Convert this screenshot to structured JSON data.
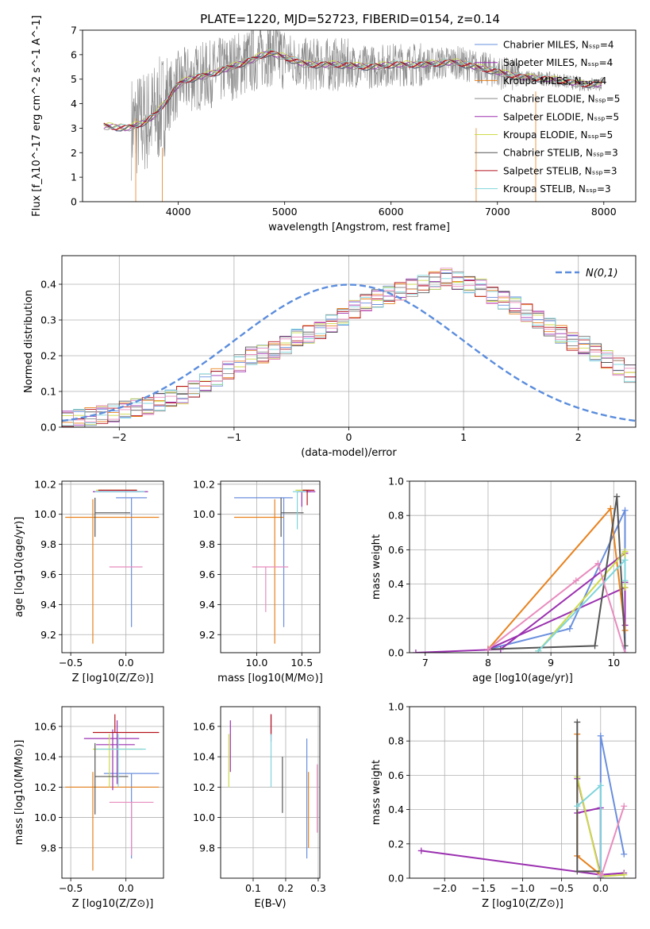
{
  "title": "PLATE=1220, MJD=52723, FIBERID=0154, z=0.14",
  "colors": {
    "series": [
      "#6a8fde",
      "#9b30b0",
      "#e8821e",
      "#8b8b8b",
      "#9b30b0",
      "#cddb4a",
      "#555555",
      "#b4141e",
      "#7fd4dc",
      "#e88cbe"
    ]
  },
  "chart_data": [
    {
      "type": "line",
      "title": "PLATE=1220, MJD=52723, FIBERID=0154, z=0.14",
      "xlabel": "wavelength [Angstrom, rest frame]",
      "ylabel": "Flux [f_λ10^-17 erg cm^-2 s^-1 A^-1]",
      "xlim": [
        3100,
        8300
      ],
      "ylim": [
        0,
        7
      ],
      "xticks": [
        4000,
        5000,
        6000,
        7000,
        8000
      ],
      "yticks": [
        0,
        1,
        2,
        3,
        4,
        5,
        6,
        7
      ],
      "legend_position": "top-right",
      "legend": [
        "Chabrier MILES, N_SSP=4",
        "Salpeter MILES, N_SSP=4",
        "Kroupa MILES, N_SSP=4",
        "Chabrier ELODIE, N_SSP=5",
        "Salpeter ELODIE, N_SSP=5",
        "Kroupa ELODIE, N_SSP=5",
        "Chabrier STELIB, N_SSP=3",
        "Salpeter STELIB, N_SSP=3",
        "Kroupa STELIB, N_SSP=3"
      ],
      "continuum": {
        "x": [
          3300,
          3500,
          3600,
          3700,
          3800,
          3900,
          4000,
          4100,
          4300,
          4500,
          4700,
          4850,
          5000,
          5200,
          5500,
          5800,
          6000,
          6300,
          6600,
          6800,
          7000,
          7200,
          7500,
          7800,
          8000
        ],
        "y": [
          3.1,
          3.0,
          3.1,
          3.3,
          3.6,
          4.2,
          4.8,
          5.0,
          5.2,
          5.5,
          5.8,
          6.1,
          5.9,
          5.6,
          5.6,
          5.5,
          5.6,
          5.6,
          5.7,
          5.5,
          5.3,
          5.1,
          5.0,
          4.8,
          4.8
        ]
      }
    },
    {
      "type": "histogram",
      "xlabel": "(data-model)/error",
      "ylabel": "Normed distribution",
      "xlim": [
        -2.5,
        2.5
      ],
      "ylim": [
        0,
        0.48
      ],
      "xticks": [
        -2,
        -1,
        0,
        1,
        2
      ],
      "yticks": [
        0.0,
        0.1,
        0.2,
        0.3,
        0.4
      ],
      "grid": true,
      "legend": [
        "N(0,1)"
      ],
      "legend_position": "top-right",
      "bin_width": 0.1,
      "bin_start": -2.5,
      "values": [
        0.02,
        0.025,
        0.03,
        0.035,
        0.04,
        0.05,
        0.055,
        0.06,
        0.07,
        0.08,
        0.09,
        0.105,
        0.125,
        0.14,
        0.16,
        0.18,
        0.2,
        0.205,
        0.215,
        0.23,
        0.25,
        0.26,
        0.27,
        0.29,
        0.31,
        0.33,
        0.35,
        0.36,
        0.37,
        0.38,
        0.39,
        0.4,
        0.41,
        0.42,
        0.41,
        0.4,
        0.39,
        0.37,
        0.355,
        0.34,
        0.32,
        0.3,
        0.28,
        0.26,
        0.24,
        0.23,
        0.21,
        0.19,
        0.17,
        0.15
      ]
    },
    {
      "type": "errorbar",
      "xlabel": "Z [log10(Z/Z⊙)]",
      "ylabel": "age [log10(age/yr)]",
      "xlim": [
        -0.58,
        0.34
      ],
      "ylim": [
        9.08,
        10.22
      ],
      "xticks": [
        -0.5,
        0.0
      ],
      "yticks": [
        9.2,
        9.4,
        9.6,
        9.8,
        10.0,
        10.2
      ],
      "grid": true,
      "points": [
        {
          "x": 0.05,
          "y": 10.11,
          "xerr": [
            0.14,
            0.14
          ],
          "yerr": [
            0.86,
            0.0
          ],
          "c": 0
        },
        {
          "x": -0.05,
          "y": 10.15,
          "xerr": [
            0.2,
            0.25
          ],
          "yerr": [
            0.0,
            0.0
          ],
          "c": 1
        },
        {
          "x": -0.3,
          "y": 9.98,
          "xerr": [
            0.25,
            0.6
          ],
          "yerr": [
            0.84,
            0.12
          ],
          "c": 2
        },
        {
          "x": -0.12,
          "y": 10.15,
          "xerr": [
            0.18,
            0.25
          ],
          "yerr": [
            0.0,
            0.0
          ],
          "c": 4
        },
        {
          "x": -0.15,
          "y": 10.16,
          "xerr": [
            0.12,
            0.25
          ],
          "yerr": [
            0.0,
            0.0
          ],
          "c": 5
        },
        {
          "x": -0.28,
          "y": 10.01,
          "xerr": [
            0.0,
            0.32
          ],
          "yerr": [
            0.16,
            0.1
          ],
          "c": 6
        },
        {
          "x": -0.1,
          "y": 10.16,
          "xerr": [
            0.15,
            0.2
          ],
          "yerr": [
            0.0,
            0.0
          ],
          "c": 7
        },
        {
          "x": -0.08,
          "y": 10.15,
          "xerr": [
            0.2,
            0.25
          ],
          "yerr": [
            0.0,
            0.0
          ],
          "c": 8
        },
        {
          "x": 0.05,
          "y": 9.65,
          "xerr": [
            0.2,
            0.1
          ],
          "yerr": [
            0.0,
            0.0
          ],
          "c": 9
        }
      ]
    },
    {
      "type": "errorbar",
      "xlabel": "mass [log10(M/M⊙)]",
      "xlim": [
        9.6,
        10.7
      ],
      "ylim": [
        9.08,
        10.22
      ],
      "xticks": [
        10.0,
        10.5
      ],
      "yticks": [
        9.2,
        9.4,
        9.6,
        9.8,
        10.0,
        10.2
      ],
      "grid": true,
      "points": [
        {
          "x": 10.3,
          "y": 10.11,
          "xerr": [
            0.55,
            0.1
          ],
          "yerr": [
            0.86,
            0.0
          ],
          "c": 0
        },
        {
          "x": 10.55,
          "y": 10.15,
          "xerr": [
            0.05,
            0.1
          ],
          "yerr": [
            0.0,
            0.0
          ],
          "c": 1
        },
        {
          "x": 10.2,
          "y": 9.98,
          "xerr": [
            0.45,
            0.1
          ],
          "yerr": [
            0.84,
            0.12
          ],
          "c": 2
        },
        {
          "x": 10.5,
          "y": 10.15,
          "xerr": [
            0.05,
            0.1
          ],
          "yerr": [
            0.1,
            0.0
          ],
          "c": 4
        },
        {
          "x": 10.48,
          "y": 10.16,
          "xerr": [
            0.05,
            0.1
          ],
          "yerr": [
            0.0,
            0.0
          ],
          "c": 5
        },
        {
          "x": 10.27,
          "y": 10.01,
          "xerr": [
            0.0,
            0.25
          ],
          "yerr": [
            0.16,
            0.1
          ],
          "c": 6
        },
        {
          "x": 10.56,
          "y": 10.16,
          "xerr": [
            0.05,
            0.08
          ],
          "yerr": [
            0.1,
            0.0
          ],
          "c": 7
        },
        {
          "x": 10.45,
          "y": 10.15,
          "xerr": [
            0.05,
            0.1
          ],
          "yerr": [
            0.25,
            0.0
          ],
          "c": 8
        },
        {
          "x": 10.1,
          "y": 9.65,
          "xerr": [
            0.15,
            0.25
          ],
          "yerr": [
            0.3,
            0.0
          ],
          "c": 9
        }
      ]
    },
    {
      "type": "line",
      "xlabel": "age [log10(age/yr)]",
      "ylabel": "mass weight",
      "xlim": [
        6.75,
        10.35
      ],
      "ylim": [
        0,
        1
      ],
      "xticks": [
        7,
        8,
        9,
        10
      ],
      "yticks": [
        0.0,
        0.2,
        0.4,
        0.6,
        0.8,
        1.0
      ],
      "grid": true,
      "series": [
        {
          "x": [
            8.0,
            9.3,
            10.18,
            10.18
          ],
          "y": [
            0.02,
            0.14,
            0.83,
            0.0
          ],
          "c": 0
        },
        {
          "x": [
            8.0,
            10.18,
            10.18
          ],
          "y": [
            0.02,
            0.38,
            0.16
          ],
          "c": 1
        },
        {
          "x": [
            8.0,
            9.95,
            10.18
          ],
          "y": [
            0.02,
            0.84,
            0.13
          ],
          "c": 2
        },
        {
          "x": [
            6.85,
            8.2,
            10.18,
            10.18
          ],
          "y": [
            0.0,
            0.02,
            0.58,
            0.41
          ],
          "c": 4
        },
        {
          "x": [
            8.8,
            10.18,
            10.18
          ],
          "y": [
            0.01,
            0.59,
            0.38
          ],
          "c": 5
        },
        {
          "x": [
            8.0,
            9.7,
            10.05,
            10.18
          ],
          "y": [
            0.02,
            0.04,
            0.91,
            0.04
          ],
          "c": 6
        },
        {
          "x": [
            8.8,
            10.18,
            10.18
          ],
          "y": [
            0.01,
            0.54,
            0.42
          ],
          "c": 8
        },
        {
          "x": [
            8.0,
            9.4,
            9.75,
            10.18
          ],
          "y": [
            0.02,
            0.42,
            0.52,
            0.0
          ],
          "c": 9
        }
      ]
    },
    {
      "type": "errorbar",
      "xlabel": "Z [log10(Z/Z⊙)]",
      "ylabel": "mass [log10(M/M⊙)]",
      "xlim": [
        -0.58,
        0.34
      ],
      "ylim": [
        9.6,
        10.73
      ],
      "xticks": [
        -0.5,
        0.0
      ],
      "yticks": [
        9.8,
        10.0,
        10.2,
        10.4,
        10.6
      ],
      "grid": true,
      "points": [
        {
          "x": 0.05,
          "y": 10.29,
          "xerr": [
            0.25,
            0.25
          ],
          "yerr": [
            0.56,
            0.0
          ],
          "c": 0
        },
        {
          "x": -0.08,
          "y": 10.52,
          "xerr": [
            0.3,
            0.2
          ],
          "yerr": [
            0.3,
            0.12
          ],
          "c": 1
        },
        {
          "x": -0.3,
          "y": 10.2,
          "xerr": [
            0.25,
            0.6
          ],
          "yerr": [
            0.55,
            0.1
          ],
          "c": 2
        },
        {
          "x": -0.12,
          "y": 10.48,
          "xerr": [
            0.15,
            0.2
          ],
          "yerr": [
            0.3,
            0.1
          ],
          "c": 4
        },
        {
          "x": -0.15,
          "y": 10.45,
          "xerr": [
            0.15,
            0.3
          ],
          "yerr": [
            0.25,
            0.1
          ],
          "c": 5
        },
        {
          "x": -0.28,
          "y": 10.27,
          "xerr": [
            0.0,
            0.3
          ],
          "yerr": [
            0.25,
            0.22
          ],
          "c": 6
        },
        {
          "x": -0.1,
          "y": 10.56,
          "xerr": [
            0.2,
            0.4
          ],
          "yerr": [
            0.0,
            0.12
          ],
          "c": 7
        },
        {
          "x": -0.07,
          "y": 10.45,
          "xerr": [
            0.2,
            0.25
          ],
          "yerr": [
            0.25,
            0.1
          ],
          "c": 8
        },
        {
          "x": 0.05,
          "y": 10.1,
          "xerr": [
            0.2,
            0.2
          ],
          "yerr": [
            0.35,
            0.0
          ],
          "c": 9
        }
      ]
    },
    {
      "type": "errorbar",
      "xlabel": "E(B-V)",
      "xlim": [
        0.0,
        0.305
      ],
      "ylim": [
        9.6,
        10.73
      ],
      "xticks": [
        0.1,
        0.2,
        0.3
      ],
      "yticks": [
        9.8,
        10.0,
        10.2,
        10.4,
        10.6
      ],
      "grid": true,
      "points": [
        {
          "x": 0.265,
          "y": 10.2,
          "xerr": [
            0,
            0
          ],
          "yerr": [
            0.47,
            0.32
          ],
          "c": 0
        },
        {
          "x": 0.155,
          "y": 10.6,
          "xerr": [
            0,
            0
          ],
          "yerr": [
            0.1,
            0.08
          ],
          "c": 1
        },
        {
          "x": 0.27,
          "y": 10.1,
          "xerr": [
            0,
            0
          ],
          "yerr": [
            0.3,
            0.2
          ],
          "c": 2
        },
        {
          "x": 0.03,
          "y": 10.5,
          "xerr": [
            0,
            0
          ],
          "yerr": [
            0.2,
            0.14
          ],
          "c": 4
        },
        {
          "x": 0.025,
          "y": 10.45,
          "xerr": [
            0,
            0
          ],
          "yerr": [
            0.25,
            0.1
          ],
          "c": 5
        },
        {
          "x": 0.19,
          "y": 10.2,
          "xerr": [
            0,
            0
          ],
          "yerr": [
            0.17,
            0.2
          ],
          "c": 6
        },
        {
          "x": 0.155,
          "y": 10.62,
          "xerr": [
            0,
            0
          ],
          "yerr": [
            0.08,
            0.06
          ],
          "c": 7
        },
        {
          "x": 0.155,
          "y": 10.4,
          "xerr": [
            0,
            0
          ],
          "yerr": [
            0.2,
            0.15
          ],
          "c": 8
        },
        {
          "x": 0.297,
          "y": 10.1,
          "xerr": [
            0,
            0
          ],
          "yerr": [
            0.2,
            0.25
          ],
          "c": 9
        }
      ]
    },
    {
      "type": "line",
      "xlabel": "Z [log10(Z/Z⊙)]",
      "ylabel": "mass weight",
      "xlim": [
        -2.45,
        0.45
      ],
      "ylim": [
        0,
        1
      ],
      "xticks": [
        -2.0,
        -1.5,
        -1.0,
        -0.5,
        0.0
      ],
      "yticks": [
        0.0,
        0.2,
        0.4,
        0.6,
        0.8,
        1.0
      ],
      "grid": true,
      "series": [
        {
          "x": [
            0.3,
            0.0,
            0.0,
            0.0
          ],
          "y": [
            0.14,
            0.83,
            0.02,
            0.0
          ],
          "c": 0
        },
        {
          "x": [
            -2.3,
            0.0,
            0.0,
            -0.3
          ],
          "y": [
            0.16,
            0.02,
            0.41,
            0.38
          ],
          "c": 1
        },
        {
          "x": [
            -0.3,
            -0.3,
            0.0
          ],
          "y": [
            0.84,
            0.13,
            0.02
          ],
          "c": 2
        },
        {
          "x": [
            -0.3,
            0.0,
            0.3
          ],
          "y": [
            0.58,
            0.02,
            0.03
          ],
          "c": 4
        },
        {
          "x": [
            -0.3,
            0.0,
            0.3
          ],
          "y": [
            0.59,
            0.01,
            0.02
          ],
          "c": 5
        },
        {
          "x": [
            -0.3,
            -0.3,
            0.0,
            0.0
          ],
          "y": [
            0.91,
            0.04,
            0.04,
            0.0
          ],
          "c": 6
        },
        {
          "x": [
            -0.3,
            0.0,
            0.0
          ],
          "y": [
            0.42,
            0.54,
            0.01
          ],
          "c": 8
        },
        {
          "x": [
            0.3,
            0.0,
            0.0
          ],
          "y": [
            0.42,
            0.0,
            0.02
          ],
          "c": 9
        }
      ]
    }
  ]
}
